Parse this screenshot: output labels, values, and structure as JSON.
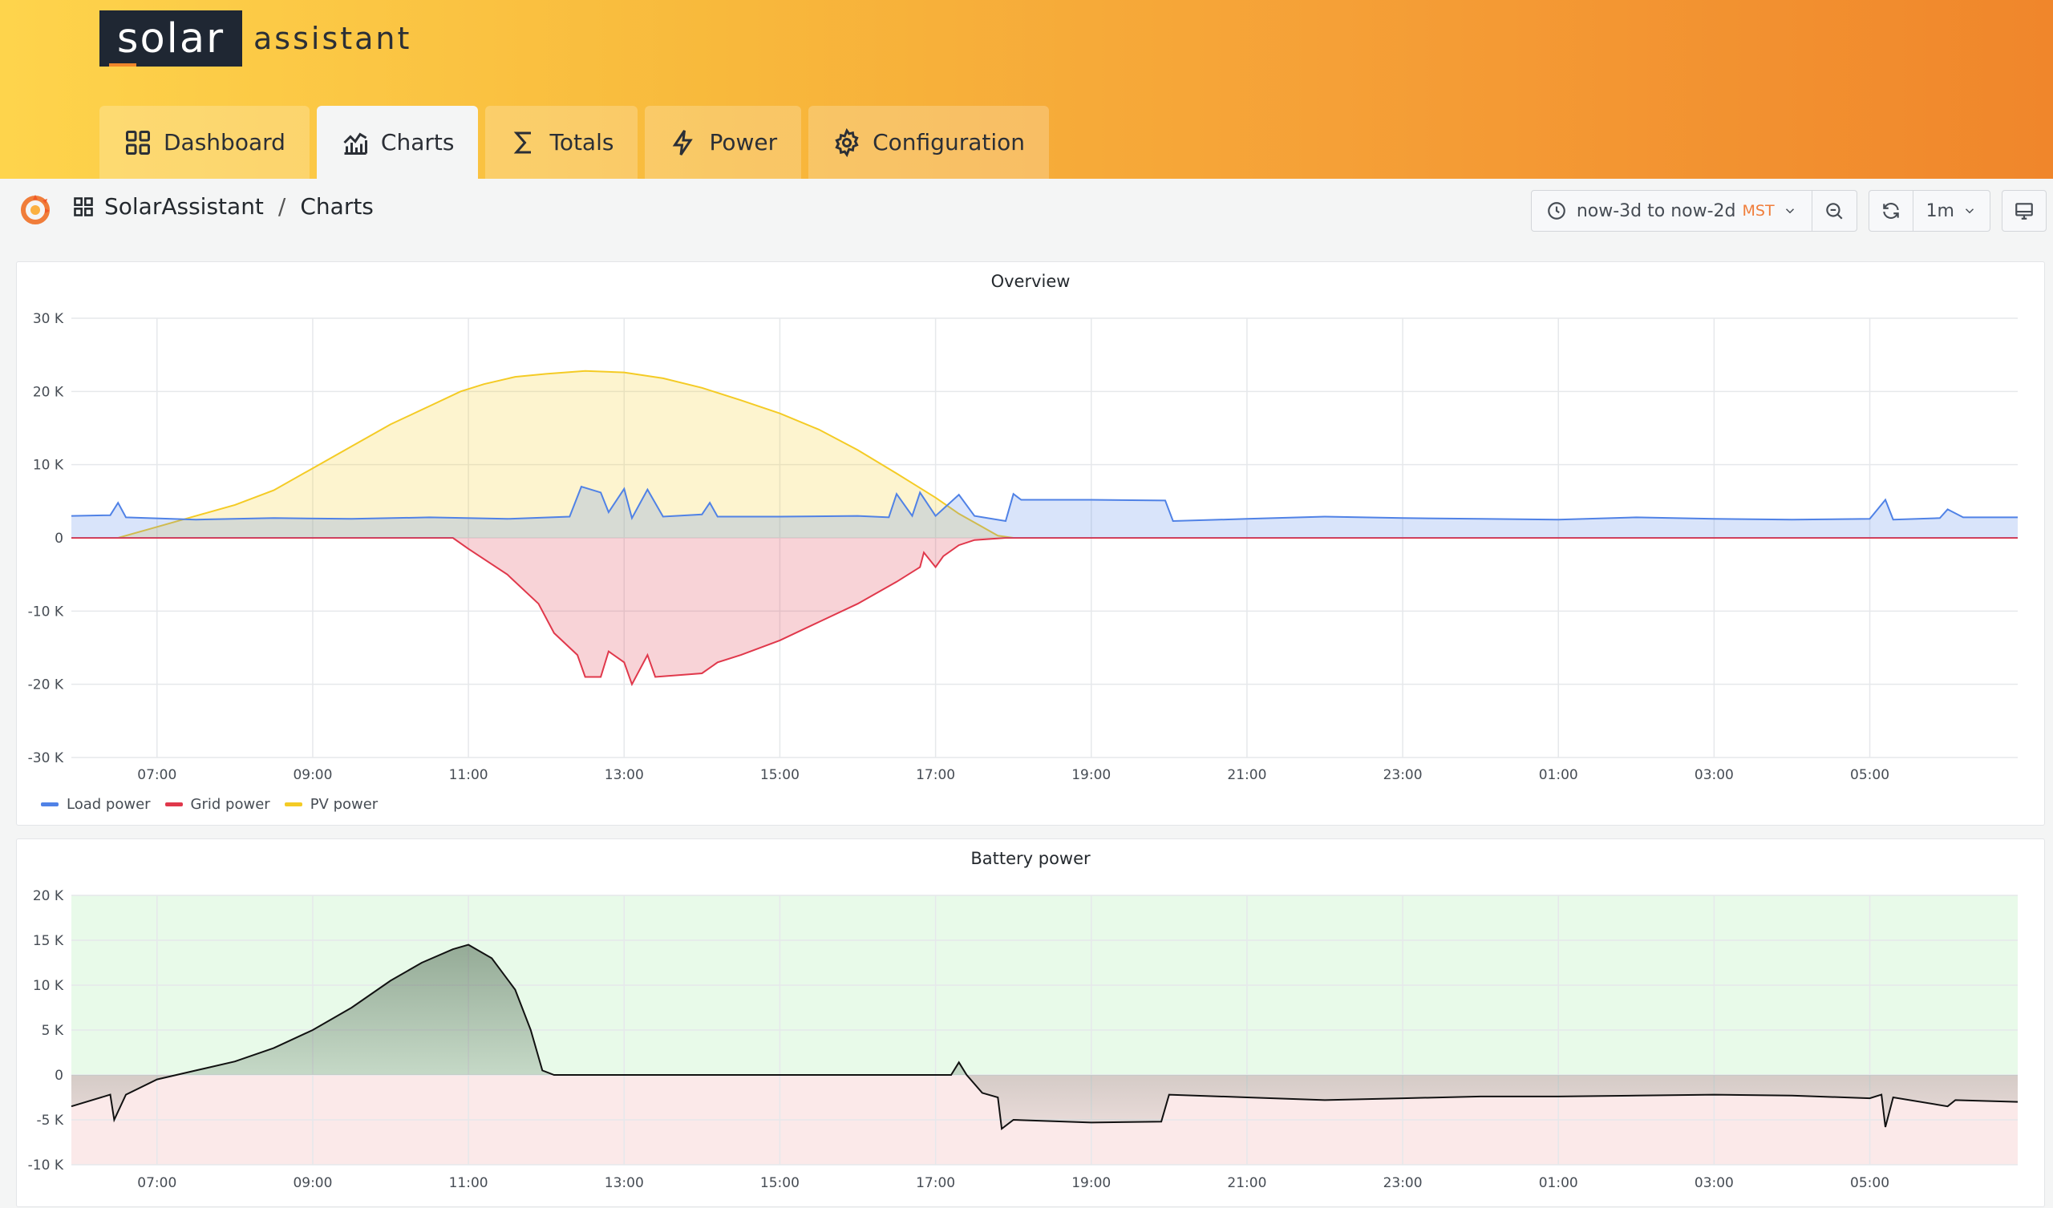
{
  "app": {
    "logo_main": "solar",
    "logo_sub": "assistant"
  },
  "tabs": [
    {
      "label": "Dashboard",
      "icon": "grid-icon",
      "active": false
    },
    {
      "label": "Charts",
      "icon": "chart-icon",
      "active": true
    },
    {
      "label": "Totals",
      "icon": "sigma-icon",
      "active": false
    },
    {
      "label": "Power",
      "icon": "bolt-icon",
      "active": false
    },
    {
      "label": "Configuration",
      "icon": "gear-icon",
      "active": false
    }
  ],
  "breadcrumb": {
    "folder": "SolarAssistant",
    "separator": "/",
    "page": "Charts"
  },
  "time_picker": {
    "range": "now-3d to now-2d",
    "timezone": "MST"
  },
  "refresh": {
    "interval": "1m"
  },
  "colors": {
    "load": "#5082e6",
    "grid": "#e0384b",
    "pv": "#f4cb25",
    "battery": "#111111",
    "positive_zone": "#e8fae9",
    "negative_zone": "#fbe9e9"
  },
  "chart_data": [
    {
      "type": "area",
      "title": "Overview",
      "x_labels": [
        "07:00",
        "09:00",
        "11:00",
        "13:00",
        "15:00",
        "17:00",
        "19:00",
        "21:00",
        "23:00",
        "01:00",
        "03:00",
        "05:00"
      ],
      "y_ticks": [
        "30 K",
        "20 K",
        "10 K",
        "0",
        "-10 K",
        "-20 K",
        "-30 K"
      ],
      "ylim": [
        -30000,
        30000
      ],
      "legend_position": "bottom-left",
      "x_hours_note_units": "hours of day, continuing past midnight",
      "series": [
        {
          "name": "Load power",
          "color": "#5082e6",
          "points": [
            [
              5.9,
              3000
            ],
            [
              6.4,
              3100
            ],
            [
              6.5,
              4800
            ],
            [
              6.6,
              2800
            ],
            [
              7.5,
              2500
            ],
            [
              8.5,
              2700
            ],
            [
              9.5,
              2600
            ],
            [
              10.5,
              2800
            ],
            [
              11.5,
              2600
            ],
            [
              12.3,
              2900
            ],
            [
              12.45,
              7000
            ],
            [
              12.7,
              6200
            ],
            [
              12.8,
              3500
            ],
            [
              13.0,
              6700
            ],
            [
              13.1,
              2700
            ],
            [
              13.3,
              6600
            ],
            [
              13.5,
              2900
            ],
            [
              14.0,
              3200
            ],
            [
              14.1,
              4800
            ],
            [
              14.2,
              2900
            ],
            [
              15.0,
              2900
            ],
            [
              16.0,
              3000
            ],
            [
              16.4,
              2800
            ],
            [
              16.5,
              6000
            ],
            [
              16.7,
              3000
            ],
            [
              16.8,
              6200
            ],
            [
              17.0,
              3000
            ],
            [
              17.3,
              5900
            ],
            [
              17.5,
              3000
            ],
            [
              17.9,
              2300
            ],
            [
              18.0,
              6000
            ],
            [
              18.1,
              5200
            ],
            [
              19.0,
              5200
            ],
            [
              19.95,
              5100
            ],
            [
              20.05,
              2300
            ],
            [
              21.0,
              2600
            ],
            [
              22.0,
              2900
            ],
            [
              23.0,
              2700
            ],
            [
              24.0,
              2600
            ],
            [
              25.0,
              2500
            ],
            [
              26.0,
              2800
            ],
            [
              27.0,
              2600
            ],
            [
              28.0,
              2500
            ],
            [
              29.0,
              2600
            ],
            [
              29.2,
              5200
            ],
            [
              29.3,
              2500
            ],
            [
              29.9,
              2700
            ],
            [
              30.0,
              3900
            ],
            [
              30.2,
              2800
            ],
            [
              30.9,
              2800
            ]
          ]
        },
        {
          "name": "Grid power",
          "color": "#e0384b",
          "points": [
            [
              5.9,
              0
            ],
            [
              10.8,
              0
            ],
            [
              11.0,
              -1500
            ],
            [
              11.5,
              -5000
            ],
            [
              11.9,
              -9000
            ],
            [
              12.1,
              -13000
            ],
            [
              12.4,
              -16000
            ],
            [
              12.5,
              -19000
            ],
            [
              12.7,
              -19000
            ],
            [
              12.8,
              -15500
            ],
            [
              13.0,
              -17000
            ],
            [
              13.1,
              -20000
            ],
            [
              13.3,
              -16000
            ],
            [
              13.4,
              -19000
            ],
            [
              14.0,
              -18500
            ],
            [
              14.2,
              -17000
            ],
            [
              14.5,
              -16000
            ],
            [
              15.0,
              -14000
            ],
            [
              15.5,
              -11500
            ],
            [
              16.0,
              -9000
            ],
            [
              16.5,
              -6000
            ],
            [
              16.8,
              -4000
            ],
            [
              16.85,
              -2000
            ],
            [
              17.0,
              -4000
            ],
            [
              17.1,
              -2500
            ],
            [
              17.3,
              -1000
            ],
            [
              17.5,
              -300
            ],
            [
              17.9,
              0
            ],
            [
              30.9,
              0
            ]
          ]
        },
        {
          "name": "PV power",
          "color": "#f4cb25",
          "points": [
            [
              5.9,
              0
            ],
            [
              6.5,
              0
            ],
            [
              7.0,
              1500
            ],
            [
              7.5,
              3000
            ],
            [
              8.0,
              4500
            ],
            [
              8.5,
              6500
            ],
            [
              9.0,
              9500
            ],
            [
              9.5,
              12500
            ],
            [
              10.0,
              15500
            ],
            [
              10.5,
              18000
            ],
            [
              10.9,
              20000
            ],
            [
              11.2,
              21000
            ],
            [
              11.6,
              22000
            ],
            [
              12.0,
              22400
            ],
            [
              12.5,
              22800
            ],
            [
              13.0,
              22600
            ],
            [
              13.5,
              21800
            ],
            [
              14.0,
              20500
            ],
            [
              14.5,
              18800
            ],
            [
              15.0,
              17000
            ],
            [
              15.5,
              14800
            ],
            [
              16.0,
              12000
            ],
            [
              16.5,
              8800
            ],
            [
              17.0,
              5500
            ],
            [
              17.3,
              3300
            ],
            [
              17.6,
              1500
            ],
            [
              17.8,
              300
            ],
            [
              18.0,
              0
            ],
            [
              30.9,
              0
            ]
          ]
        }
      ]
    },
    {
      "type": "area",
      "title": "Battery power",
      "x_labels": [
        "07:00",
        "09:00",
        "11:00",
        "13:00",
        "15:00",
        "17:00",
        "19:00",
        "21:00",
        "23:00",
        "01:00",
        "03:00",
        "05:00"
      ],
      "y_ticks": [
        "20 K",
        "15 K",
        "10 K",
        "5 K",
        "0",
        "-5 K",
        "-10 K"
      ],
      "ylim": [
        -10000,
        20000
      ],
      "series": [
        {
          "color": "#111111",
          "points": [
            [
              5.9,
              -3500
            ],
            [
              6.4,
              -2200
            ],
            [
              6.45,
              -5000
            ],
            [
              6.6,
              -2200
            ],
            [
              7.0,
              -500
            ],
            [
              7.5,
              500
            ],
            [
              8.0,
              1500
            ],
            [
              8.5,
              3000
            ],
            [
              9.0,
              5000
            ],
            [
              9.5,
              7500
            ],
            [
              10.0,
              10500
            ],
            [
              10.4,
              12500
            ],
            [
              10.8,
              14000
            ],
            [
              11.0,
              14500
            ],
            [
              11.3,
              13000
            ],
            [
              11.6,
              9500
            ],
            [
              11.8,
              5000
            ],
            [
              11.95,
              500
            ],
            [
              12.1,
              0
            ],
            [
              17.2,
              0
            ],
            [
              17.3,
              1400
            ],
            [
              17.4,
              0
            ],
            [
              17.6,
              -2000
            ],
            [
              17.8,
              -2500
            ],
            [
              17.85,
              -6000
            ],
            [
              18.0,
              -5000
            ],
            [
              19.0,
              -5300
            ],
            [
              19.9,
              -5200
            ],
            [
              20.0,
              -2200
            ],
            [
              21.0,
              -2500
            ],
            [
              22.0,
              -2800
            ],
            [
              23.0,
              -2600
            ],
            [
              24.0,
              -2400
            ],
            [
              25.0,
              -2400
            ],
            [
              26.0,
              -2300
            ],
            [
              27.0,
              -2200
            ],
            [
              28.0,
              -2300
            ],
            [
              29.0,
              -2600
            ],
            [
              29.15,
              -2200
            ],
            [
              29.2,
              -5800
            ],
            [
              29.3,
              -2500
            ],
            [
              30.0,
              -3500
            ],
            [
              30.1,
              -2800
            ],
            [
              30.9,
              -3000
            ]
          ]
        }
      ]
    }
  ]
}
